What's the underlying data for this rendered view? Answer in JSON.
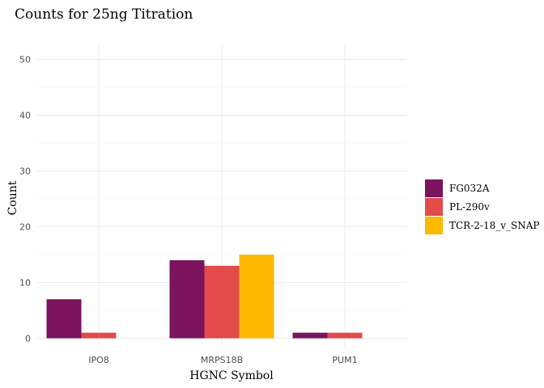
{
  "chart_data": {
    "type": "bar",
    "title": "Counts for 25ng Titration",
    "xlabel": "HGNC Symbol",
    "ylabel": "Count",
    "categories": [
      "IPO8",
      "MRPS18B",
      "PUM1"
    ],
    "series": [
      {
        "name": "FG032A",
        "color": "#7B135E",
        "values": [
          7,
          14,
          1
        ]
      },
      {
        "name": "PL-290v",
        "color": "#E34B4B",
        "values": [
          1,
          13,
          1
        ]
      },
      {
        "name": "TCR-2-18_v_SNAP",
        "color": "#FDB800",
        "values": [
          null,
          15,
          null
        ]
      }
    ],
    "ylim": [
      0,
      50
    ],
    "yticks": [
      0,
      10,
      20,
      30,
      40,
      50
    ],
    "grid": true,
    "legend_position": "right"
  }
}
